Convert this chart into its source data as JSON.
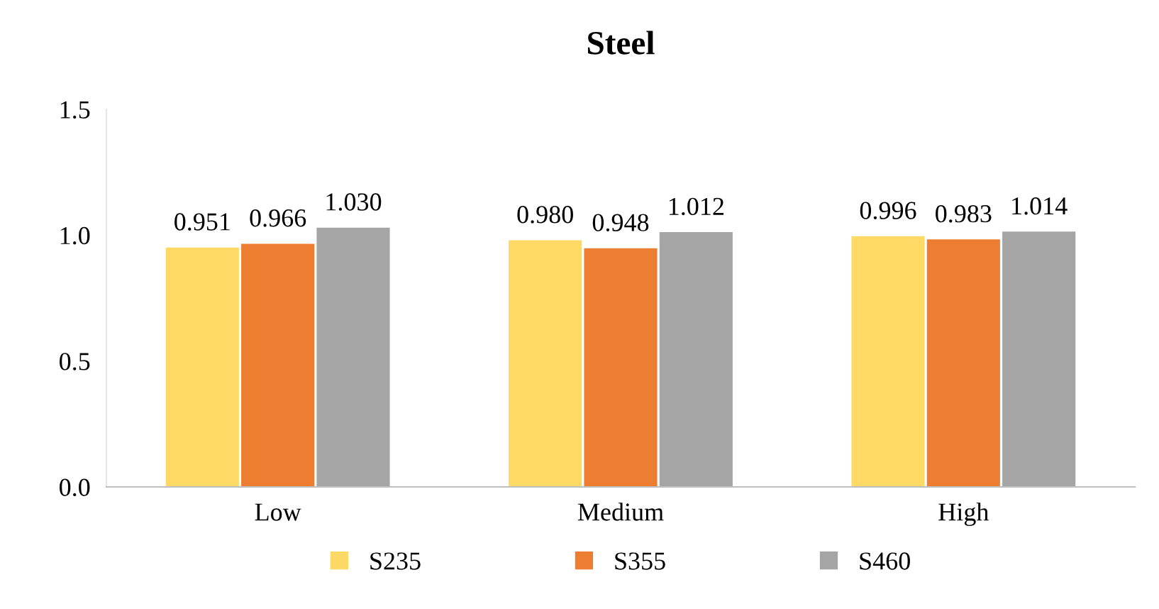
{
  "chart_data": {
    "type": "bar",
    "title": "Steel",
    "categories": [
      "Low",
      "Medium",
      "High"
    ],
    "series": [
      {
        "name": "S235",
        "color": "#ffd966",
        "values": [
          0.951,
          0.98,
          0.996
        ],
        "value_labels": [
          "0.951",
          "0.980",
          "0.996"
        ]
      },
      {
        "name": "S355",
        "color": "#ed7d31",
        "values": [
          0.966,
          0.948,
          0.983
        ],
        "value_labels": [
          "0.966",
          "0.948",
          "0.983"
        ]
      },
      {
        "name": "S460",
        "color": "#a5a5a5",
        "values": [
          1.03,
          1.012,
          1.014
        ],
        "value_labels": [
          "1.030",
          "1.012",
          "1.014"
        ]
      }
    ],
    "ylim": [
      0,
      1.5
    ],
    "yticks": [
      {
        "value": 0,
        "label": "0.0"
      },
      {
        "value": 0.5,
        "label": "0.5"
      },
      {
        "value": 1.0,
        "label": "1.0"
      },
      {
        "value": 1.5,
        "label": "1.5"
      }
    ],
    "grid": false,
    "legend": "bottom"
  }
}
